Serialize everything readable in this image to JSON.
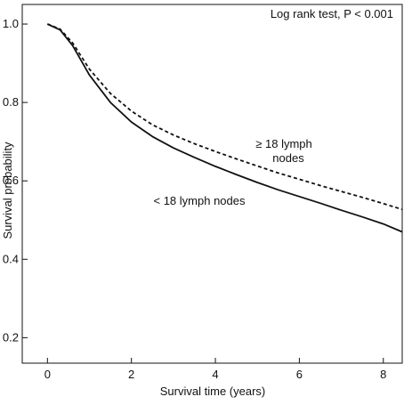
{
  "chart_data": {
    "type": "line",
    "title": "",
    "xlabel": "Survival time (years)",
    "ylabel": "Survival probability",
    "xlim": [
      -0.6,
      8.45
    ],
    "ylim": [
      0.135,
      1.05
    ],
    "xticks": [
      0,
      2,
      4,
      6,
      8
    ],
    "xtick_labels": [
      "0",
      "2",
      "4",
      "6",
      "8"
    ],
    "yticks": [
      0.2,
      0.4,
      0.6,
      0.8,
      1.0
    ],
    "ytick_labels": [
      "0.2",
      "0.4",
      "0.6",
      "0.8",
      "1.0"
    ],
    "grid": false,
    "legend": "none",
    "stat_annotation": "Log rank test, P < 0.001",
    "series": [
      {
        "label_lines": [
          "< 18 lymph nodes"
        ],
        "style": "solid",
        "color": "#111111",
        "x": [
          0,
          0.3,
          0.6,
          1.0,
          1.5,
          2.0,
          2.5,
          3.0,
          3.5,
          4.0,
          4.5,
          5.0,
          5.5,
          6.0,
          6.5,
          7.0,
          7.5,
          8.0,
          8.45
        ],
        "y": [
          1.0,
          0.985,
          0.945,
          0.87,
          0.8,
          0.75,
          0.713,
          0.684,
          0.66,
          0.637,
          0.616,
          0.596,
          0.577,
          0.56,
          0.543,
          0.525,
          0.508,
          0.49,
          0.47
        ]
      },
      {
        "label_lines": [
          "≥ 18 lymph",
          "nodes"
        ],
        "style": "dashed",
        "color": "#111111",
        "x": [
          0,
          0.3,
          0.6,
          1.0,
          1.5,
          2.0,
          2.5,
          3.0,
          3.5,
          4.0,
          4.5,
          5.0,
          5.5,
          6.0,
          6.5,
          7.0,
          7.5,
          8.0,
          8.45
        ],
        "y": [
          1.0,
          0.987,
          0.952,
          0.885,
          0.823,
          0.778,
          0.743,
          0.717,
          0.695,
          0.675,
          0.656,
          0.638,
          0.62,
          0.604,
          0.588,
          0.573,
          0.558,
          0.542,
          0.527
        ]
      }
    ]
  }
}
